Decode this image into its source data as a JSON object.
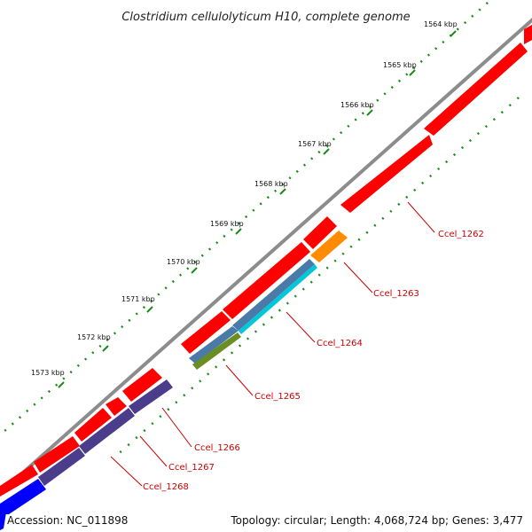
{
  "title": "Clostridium cellulolyticum H10, complete genome",
  "accession_text": "Accession: NC_011898",
  "summary_text": "Topology: circular; Length: 4,068,724 bp; Genes: 3,477",
  "ticks": [
    {
      "label": "1564 kbp"
    },
    {
      "label": "1565 kbp"
    },
    {
      "label": "1566 kbp"
    },
    {
      "label": "1567 kbp"
    },
    {
      "label": "1568 kbp"
    },
    {
      "label": "1569 kbp"
    },
    {
      "label": "1570 kbp"
    },
    {
      "label": "1571 kbp"
    },
    {
      "label": "1572 kbp"
    },
    {
      "label": "1573 kbp"
    }
  ],
  "gene_labels": [
    {
      "name": "Ccel_1262",
      "color": "#ff0000"
    },
    {
      "name": "Ccel_1263",
      "color": "#ff8c00"
    },
    {
      "name": "Ccel_1264",
      "color": "#00c8d8"
    },
    {
      "name": "Ccel_1265",
      "color": "#6b8e23"
    },
    {
      "name": "Ccel_1266",
      "color": "#ff0000"
    },
    {
      "name": "Ccel_1267",
      "color": "#ff0000"
    },
    {
      "name": "Ccel_1268",
      "color": "#4b3c8c"
    }
  ],
  "colors": {
    "backbone": "#8c8c8c",
    "cds_forward": "#ff0000",
    "cds_orange": "#ff8c00",
    "cds_cyan": "#00c8d8",
    "cds_steelblue": "#4a7aa8",
    "cds_olive": "#6b8e23",
    "cds_purple": "#4b3c8c",
    "cds_blue": "#0000ff",
    "tick_green": "#1a8a1a",
    "label_red": "#cc0000"
  }
}
